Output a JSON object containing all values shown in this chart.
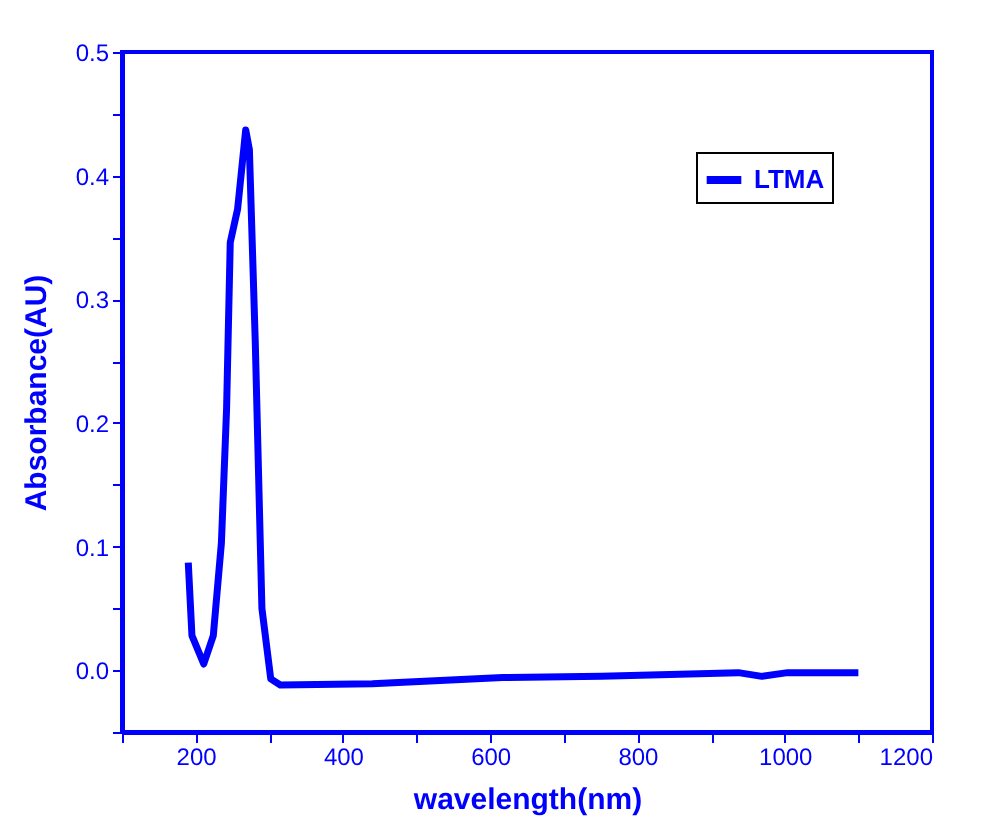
{
  "chart_data": {
    "type": "line",
    "xlabel": "wavelength(nm)",
    "ylabel": "Absorbance(AU)",
    "xlim": [
      100,
      1200
    ],
    "ylim": [
      -0.05,
      0.5
    ],
    "xticks": [
      {
        "value": 100,
        "label": null
      },
      200,
      {
        "value": 300,
        "label": null
      },
      400,
      {
        "value": 500,
        "label": null
      },
      600,
      {
        "value": 700,
        "label": null
      },
      800,
      {
        "value": 900,
        "label": null
      },
      1000,
      {
        "value": 1100,
        "label": null
      },
      1200
    ],
    "yticks": [
      {
        "value": -0.05,
        "label": null
      },
      {
        "value": 0,
        "label": "0.0"
      },
      {
        "value": 0.05,
        "label": null
      },
      0.1,
      {
        "value": 0.15,
        "label": null
      },
      0.2,
      {
        "value": 0.25,
        "label": null
      },
      0.3,
      {
        "value": 0.35,
        "label": null
      },
      0.4,
      {
        "value": 0.45,
        "label": null
      },
      0.5
    ],
    "legend": "top right",
    "grid": false,
    "line_style": "solid",
    "marker": "none",
    "series": [
      {
        "name": "LTMA",
        "color": "#0000ff",
        "x": [
          190,
          195,
          211,
          224,
          235,
          242,
          247,
          257,
          268,
          273,
          281,
          290,
          302,
          315,
          440,
          617,
          751,
          804,
          937,
          969,
          1004,
          1100
        ],
        "values": [
          0.087,
          0.028,
          0.005,
          0.028,
          0.103,
          0.211,
          0.346,
          0.373,
          0.437,
          0.421,
          0.265,
          0.05,
          -0.007,
          -0.012,
          -0.011,
          -0.006,
          -0.005,
          -0.004,
          -0.002,
          -0.005,
          -0.002,
          -0.002
        ]
      }
    ]
  }
}
